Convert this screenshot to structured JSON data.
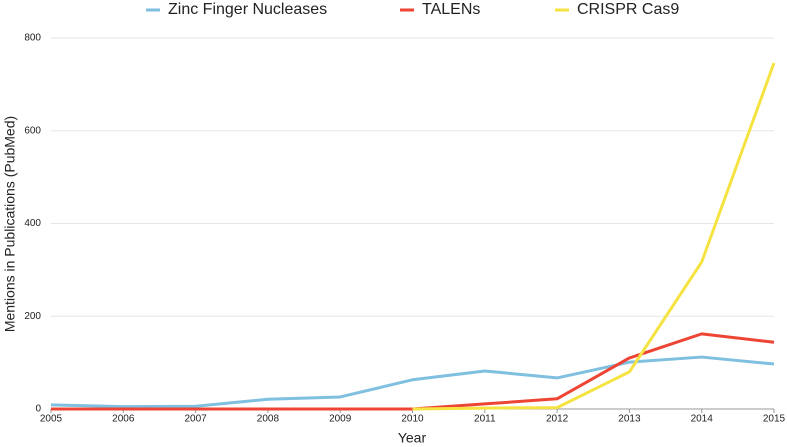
{
  "chart_data": {
    "type": "line",
    "x_label": "Year",
    "y_label": "Mentions in Publications (PubMed)",
    "x": [
      2005,
      2006,
      2007,
      2008,
      2009,
      2010,
      2011,
      2012,
      2013,
      2014,
      2015
    ],
    "xlim": [
      2005,
      2015
    ],
    "xticks": [
      2005,
      2006,
      2007,
      2008,
      2009,
      2010,
      2011,
      2012,
      2013,
      2014,
      2015
    ],
    "ylim": [
      0,
      800
    ],
    "yticks": [
      0,
      200,
      400,
      600,
      800
    ],
    "grid": true,
    "legend": "top",
    "series": [
      {
        "name": "Zinc Finger Nucleases",
        "color": "#7fbfe0",
        "values": [
          9,
          5,
          6,
          21,
          26,
          63,
          82,
          67,
          101,
          112,
          97
        ]
      },
      {
        "name": "TALENs",
        "color": "#ee4433",
        "values": [
          0,
          0,
          0,
          0,
          0,
          0,
          11,
          22,
          110,
          162,
          144
        ]
      },
      {
        "name": "CRISPR Cas9",
        "color": "#f5e342",
        "values": [
          null,
          null,
          null,
          null,
          null,
          0,
          2,
          3,
          80,
          317,
          746
        ]
      }
    ]
  }
}
